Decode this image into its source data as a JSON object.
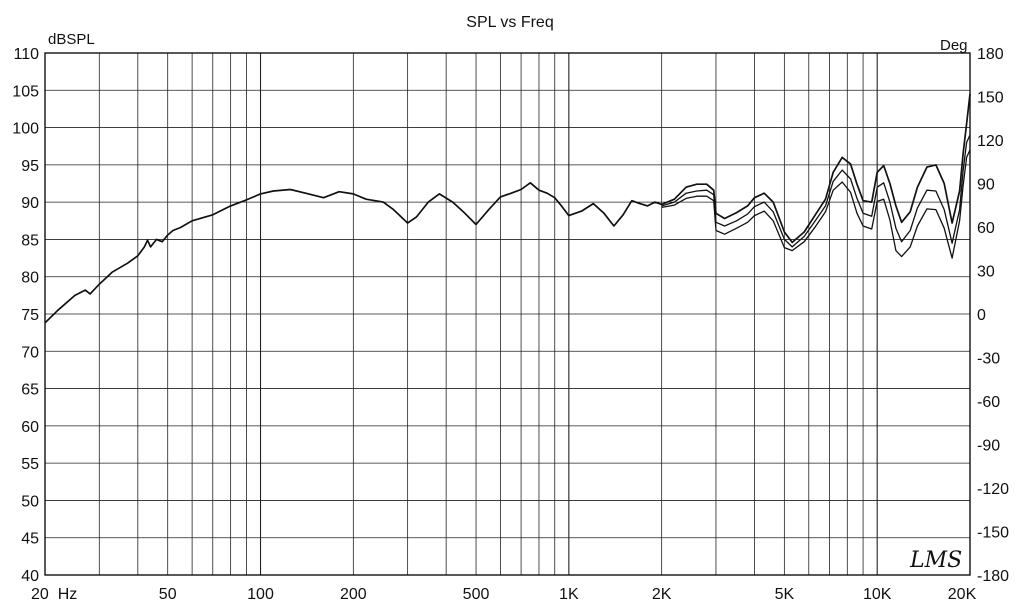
{
  "chart_data": {
    "type": "line",
    "title": "SPL vs Freq",
    "ylabel": "dBSPL",
    "y2label": "Deg",
    "xscale": "log",
    "xlim": [
      20,
      20000
    ],
    "ylim": [
      40,
      110
    ],
    "y2lim": [
      -180,
      180
    ],
    "grid": true,
    "xticks": [
      {
        "value": 20,
        "label": "20  Hz"
      },
      {
        "value": 50,
        "label": "50"
      },
      {
        "value": 100,
        "label": "100"
      },
      {
        "value": 200,
        "label": "200"
      },
      {
        "value": 500,
        "label": "500"
      },
      {
        "value": 1000,
        "label": "1K"
      },
      {
        "value": 2000,
        "label": "2K"
      },
      {
        "value": 5000,
        "label": "5K"
      },
      {
        "value": 10000,
        "label": "10K"
      },
      {
        "value": 20000,
        "label": "20K"
      }
    ],
    "yticks": [
      110,
      105,
      100,
      95,
      90,
      85,
      80,
      75,
      70,
      65,
      60,
      55,
      50,
      45,
      40
    ],
    "y2ticks": [
      180,
      150,
      120,
      90,
      60,
      30,
      0,
      -30,
      -60,
      -90,
      -120,
      -150,
      -180
    ],
    "series": [
      {
        "values": [
          [
            20,
            73.8
          ],
          [
            22,
            75.5
          ],
          [
            25,
            77.5
          ],
          [
            27,
            78.2
          ],
          [
            28,
            77.7
          ],
          [
            30,
            79
          ],
          [
            33,
            80.6
          ],
          [
            37,
            81.8
          ],
          [
            40,
            82.8
          ],
          [
            42,
            84
          ],
          [
            43,
            84.9
          ],
          [
            44,
            84
          ],
          [
            46,
            85
          ],
          [
            48,
            84.7
          ],
          [
            50,
            85.6
          ],
          [
            52,
            86.2
          ],
          [
            55,
            86.6
          ],
          [
            60,
            87.5
          ],
          [
            70,
            88.3
          ],
          [
            80,
            89.5
          ],
          [
            90,
            90.3
          ],
          [
            100,
            91.1
          ],
          [
            110,
            91.5
          ],
          [
            125,
            91.7
          ],
          [
            140,
            91.2
          ],
          [
            160,
            90.6
          ],
          [
            180,
            91.4
          ],
          [
            200,
            91.1
          ],
          [
            220,
            90.4
          ],
          [
            250,
            90
          ],
          [
            270,
            89
          ],
          [
            300,
            87.2
          ],
          [
            320,
            88
          ],
          [
            350,
            90
          ],
          [
            380,
            91.1
          ],
          [
            420,
            90
          ],
          [
            460,
            88.5
          ],
          [
            500,
            87
          ],
          [
            550,
            89
          ],
          [
            600,
            90.7
          ],
          [
            650,
            91.2
          ],
          [
            700,
            91.7
          ],
          [
            750,
            92.6
          ],
          [
            800,
            91.6
          ],
          [
            850,
            91.2
          ],
          [
            900,
            90.6
          ],
          [
            950,
            89.4
          ],
          [
            1000,
            88.2
          ],
          [
            1100,
            88.8
          ],
          [
            1200,
            89.8
          ],
          [
            1300,
            88.5
          ],
          [
            1400,
            86.8
          ],
          [
            1500,
            88.3
          ],
          [
            1600,
            90.2
          ],
          [
            1700,
            89.8
          ],
          [
            1800,
            89.5
          ],
          [
            1900,
            90
          ],
          [
            2000,
            89.7
          ],
          [
            2200,
            90.4
          ],
          [
            2400,
            92
          ],
          [
            2600,
            92.4
          ],
          [
            2800,
            92.4
          ],
          [
            2950,
            91.6
          ],
          [
            3000,
            88.5
          ],
          [
            3200,
            87.8
          ],
          [
            3500,
            88.6
          ],
          [
            3800,
            89.5
          ],
          [
            4000,
            90.6
          ],
          [
            4300,
            91.2
          ],
          [
            4600,
            90
          ],
          [
            5000,
            86
          ],
          [
            5300,
            84.6
          ],
          [
            5800,
            86
          ],
          [
            6300,
            88.3
          ],
          [
            6800,
            90.4
          ],
          [
            7200,
            94
          ],
          [
            7700,
            96
          ],
          [
            8200,
            95.1
          ],
          [
            8600,
            92.4
          ],
          [
            9000,
            90.2
          ],
          [
            9600,
            90
          ],
          [
            10000,
            94
          ],
          [
            10500,
            94.9
          ],
          [
            11000,
            92.5
          ],
          [
            11500,
            89.5
          ],
          [
            12000,
            87.3
          ],
          [
            12800,
            88.7
          ],
          [
            13500,
            92
          ],
          [
            14500,
            94.7
          ],
          [
            15500,
            95
          ],
          [
            16500,
            92.5
          ],
          [
            17500,
            87.2
          ],
          [
            18500,
            91.5
          ],
          [
            19000,
            96.5
          ],
          [
            19500,
            100.5
          ],
          [
            20000,
            104.5
          ]
        ]
      },
      {
        "values": [
          [
            2000,
            89.5
          ],
          [
            2200,
            90
          ],
          [
            2400,
            91.2
          ],
          [
            2600,
            91.5
          ],
          [
            2800,
            91.6
          ],
          [
            2950,
            91
          ],
          [
            3000,
            87.3
          ],
          [
            3200,
            86.8
          ],
          [
            3500,
            87.5
          ],
          [
            3800,
            88.4
          ],
          [
            4000,
            89.4
          ],
          [
            4300,
            90
          ],
          [
            4600,
            88.7
          ],
          [
            5000,
            85
          ],
          [
            5300,
            84
          ],
          [
            5800,
            85.4
          ],
          [
            6300,
            87.5
          ],
          [
            6800,
            89.5
          ],
          [
            7200,
            92.8
          ],
          [
            7700,
            94.3
          ],
          [
            8200,
            93.1
          ],
          [
            8600,
            90.5
          ],
          [
            9000,
            88.5
          ],
          [
            9600,
            88.1
          ],
          [
            10000,
            92
          ],
          [
            10500,
            92.6
          ],
          [
            11000,
            90
          ],
          [
            11500,
            86.5
          ],
          [
            12000,
            84.7
          ],
          [
            12800,
            86.2
          ],
          [
            13500,
            89.2
          ],
          [
            14500,
            91.6
          ],
          [
            15500,
            91.5
          ],
          [
            16500,
            89
          ],
          [
            17500,
            84.5
          ],
          [
            18500,
            89
          ],
          [
            19000,
            94.2
          ],
          [
            19500,
            98
          ],
          [
            20000,
            99
          ]
        ]
      },
      {
        "values": [
          [
            2000,
            89.3
          ],
          [
            2200,
            89.6
          ],
          [
            2400,
            90.5
          ],
          [
            2600,
            90.8
          ],
          [
            2800,
            90.8
          ],
          [
            2950,
            90.2
          ],
          [
            3000,
            86.2
          ],
          [
            3200,
            85.7
          ],
          [
            3500,
            86.5
          ],
          [
            3800,
            87.3
          ],
          [
            4000,
            88.2
          ],
          [
            4300,
            88.8
          ],
          [
            4600,
            87.5
          ],
          [
            5000,
            83.9
          ],
          [
            5300,
            83.5
          ],
          [
            5800,
            84.7
          ],
          [
            6300,
            86.7
          ],
          [
            6800,
            88.7
          ],
          [
            7200,
            91.6
          ],
          [
            7700,
            92.7
          ],
          [
            8200,
            91.3
          ],
          [
            8600,
            88.5
          ],
          [
            9000,
            86.8
          ],
          [
            9600,
            86.4
          ],
          [
            10000,
            90.1
          ],
          [
            10500,
            90.4
          ],
          [
            11000,
            87.6
          ],
          [
            11500,
            83.5
          ],
          [
            12000,
            82.7
          ],
          [
            12800,
            84
          ],
          [
            13500,
            86.8
          ],
          [
            14500,
            89.1
          ],
          [
            15500,
            89
          ],
          [
            16500,
            86.5
          ],
          [
            17500,
            82.5
          ],
          [
            18500,
            87.5
          ],
          [
            19000,
            92.2
          ],
          [
            19500,
            96
          ],
          [
            20000,
            97
          ]
        ]
      }
    ],
    "watermark": "LMS"
  }
}
